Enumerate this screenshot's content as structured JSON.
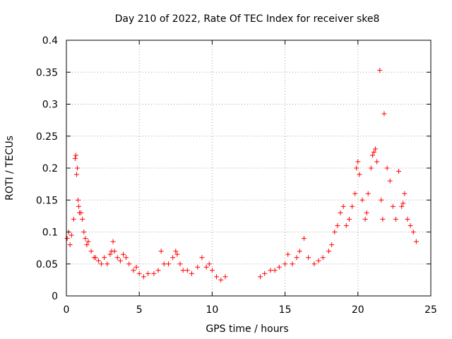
{
  "chart_data": {
    "type": "scatter",
    "title": "Day 210 of 2022, Rate Of TEC Index for receiver ske8",
    "xlabel": "GPS time / hours",
    "ylabel": "ROTI / TECUs",
    "xlim": [
      0,
      25
    ],
    "ylim": [
      0,
      0.4
    ],
    "x_ticks": [
      0,
      5,
      10,
      15,
      20,
      25
    ],
    "x_tick_labels": [
      "0",
      "5",
      "10",
      "15",
      "20",
      "25"
    ],
    "y_ticks": [
      0,
      0.05,
      0.1,
      0.15,
      0.2,
      0.25,
      0.3,
      0.35,
      0.4
    ],
    "y_tick_labels": [
      "0",
      "0.05",
      "0.1",
      "0.15",
      "0.2",
      "0.25",
      "0.3",
      "0.35",
      "0.4"
    ],
    "grid": true,
    "marker": "+",
    "marker_color": "#ff0000",
    "data_gap_hours": [
      11.0,
      13.2
    ],
    "series": [
      {
        "x": [
          0.05,
          0.15,
          0.25,
          0.35,
          0.5,
          0.6,
          0.65,
          0.7,
          0.75,
          0.8,
          0.85,
          0.9,
          1.0,
          1.1,
          1.2,
          1.3,
          1.4,
          1.5,
          1.7,
          1.9,
          2.0,
          2.2,
          2.4,
          2.6,
          2.8,
          3.0,
          3.1,
          3.2,
          3.3,
          3.5,
          3.7,
          3.9,
          4.1,
          4.3,
          4.6,
          4.8,
          5.0,
          5.3,
          5.6,
          6.0,
          6.3,
          6.5,
          6.7,
          7.0,
          7.3,
          7.5,
          7.6,
          7.8,
          8.0,
          8.3,
          8.6,
          9.0,
          9.3,
          9.6,
          9.8,
          10.0,
          10.3,
          10.6,
          10.9,
          13.3,
          13.6,
          14.0,
          14.3,
          14.6,
          15.0,
          15.2,
          15.5,
          15.8,
          16.0,
          16.3,
          16.6,
          17.0,
          17.3,
          17.6,
          18.0,
          18.2,
          18.4,
          18.6,
          18.8,
          19.0,
          19.2,
          19.4,
          19.6,
          19.8,
          19.9,
          20.0,
          20.1,
          20.3,
          20.5,
          20.6,
          20.7,
          20.9,
          21.0,
          21.1,
          21.2,
          21.3,
          21.5,
          21.6,
          21.7,
          21.8,
          22.0,
          22.2,
          22.4,
          22.6,
          22.8,
          23.0,
          23.1,
          23.2,
          23.4,
          23.6,
          23.8,
          24.0
        ],
        "y": [
          0.09,
          0.1,
          0.08,
          0.095,
          0.12,
          0.215,
          0.22,
          0.19,
          0.2,
          0.15,
          0.14,
          0.13,
          0.13,
          0.12,
          0.1,
          0.09,
          0.08,
          0.085,
          0.07,
          0.06,
          0.06,
          0.055,
          0.05,
          0.06,
          0.05,
          0.065,
          0.07,
          0.085,
          0.07,
          0.06,
          0.055,
          0.065,
          0.06,
          0.05,
          0.04,
          0.045,
          0.035,
          0.03,
          0.035,
          0.035,
          0.04,
          0.07,
          0.05,
          0.05,
          0.06,
          0.07,
          0.065,
          0.05,
          0.04,
          0.04,
          0.035,
          0.045,
          0.06,
          0.045,
          0.05,
          0.04,
          0.03,
          0.025,
          0.03,
          0.03,
          0.035,
          0.04,
          0.04,
          0.045,
          0.05,
          0.065,
          0.05,
          0.06,
          0.07,
          0.09,
          0.06,
          0.05,
          0.055,
          0.06,
          0.07,
          0.08,
          0.1,
          0.11,
          0.13,
          0.14,
          0.11,
          0.12,
          0.14,
          0.16,
          0.2,
          0.21,
          0.19,
          0.15,
          0.12,
          0.13,
          0.16,
          0.2,
          0.22,
          0.225,
          0.23,
          0.21,
          0.353,
          0.15,
          0.12,
          0.285,
          0.2,
          0.18,
          0.14,
          0.12,
          0.195,
          0.14,
          0.145,
          0.16,
          0.12,
          0.11,
          0.1,
          0.085
        ]
      }
    ]
  }
}
